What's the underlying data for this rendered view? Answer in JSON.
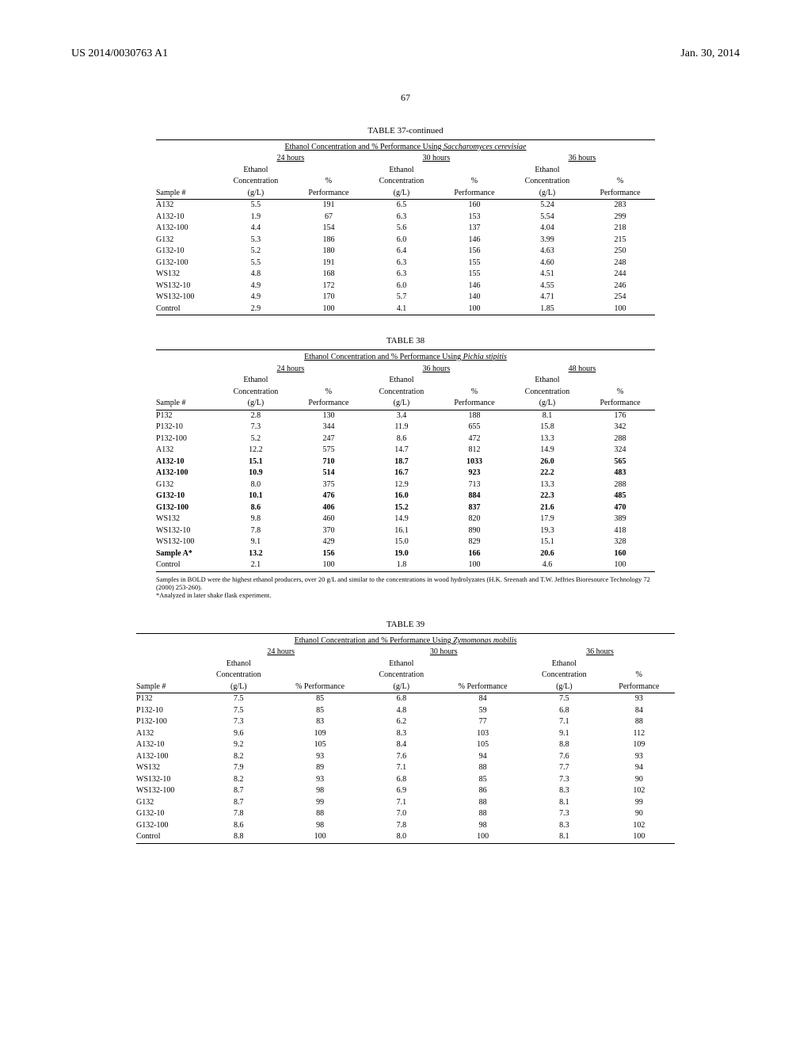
{
  "header": {
    "left": "US 2014/0030763 A1",
    "right": "Jan. 30, 2014"
  },
  "page_number": "67",
  "table37": {
    "title": "TABLE 37-continued",
    "subtitle_plain": "Ethanol Concentration and % Performance Using ",
    "subtitle_italic": "Saccharomyces cerevisiae",
    "time_groups": [
      "24 hours",
      "30 hours",
      "36 hours"
    ],
    "col_sample": "Sample #",
    "col_conc_l1": "Ethanol",
    "col_conc_l2": "Concentration",
    "col_conc_l3": "(g/L)",
    "col_perf_l1": "%",
    "col_perf_l2": "Performance",
    "rows": [
      {
        "s": "A132",
        "v": [
          "5.5",
          "191",
          "6.5",
          "160",
          "5.24",
          "283"
        ],
        "b": false
      },
      {
        "s": "A132-10",
        "v": [
          "1.9",
          "67",
          "6.3",
          "153",
          "5.54",
          "299"
        ],
        "b": false
      },
      {
        "s": "A132-100",
        "v": [
          "4.4",
          "154",
          "5.6",
          "137",
          "4.04",
          "218"
        ],
        "b": false
      },
      {
        "s": "G132",
        "v": [
          "5.3",
          "186",
          "6.0",
          "146",
          "3.99",
          "215"
        ],
        "b": false
      },
      {
        "s": "G132-10",
        "v": [
          "5.2",
          "180",
          "6.4",
          "156",
          "4.63",
          "250"
        ],
        "b": false
      },
      {
        "s": "G132-100",
        "v": [
          "5.5",
          "191",
          "6.3",
          "155",
          "4.60",
          "248"
        ],
        "b": false
      },
      {
        "s": "WS132",
        "v": [
          "4.8",
          "168",
          "6.3",
          "155",
          "4.51",
          "244"
        ],
        "b": false
      },
      {
        "s": "WS132-10",
        "v": [
          "4.9",
          "172",
          "6.0",
          "146",
          "4.55",
          "246"
        ],
        "b": false
      },
      {
        "s": "WS132-100",
        "v": [
          "4.9",
          "170",
          "5.7",
          "140",
          "4.71",
          "254"
        ],
        "b": false
      },
      {
        "s": "Control",
        "v": [
          "2.9",
          "100",
          "4.1",
          "100",
          "1.85",
          "100"
        ],
        "b": false
      }
    ]
  },
  "table38": {
    "title": "TABLE 38",
    "subtitle_plain": "Ethanol Concentration and % Performance Using ",
    "subtitle_italic": "Pichia stipitis",
    "time_groups": [
      "24 hours",
      "36 hours",
      "48 hours"
    ],
    "col_sample": "Sample #",
    "col_conc_l1": "Ethanol",
    "col_conc_l2": "Concentration",
    "col_conc_l3": "(g/L)",
    "col_perf_l1": "%",
    "col_perf_l2": "Performance",
    "rows": [
      {
        "s": "P132",
        "v": [
          "2.8",
          "130",
          "3.4",
          "188",
          "8.1",
          "176"
        ],
        "b": false
      },
      {
        "s": "P132-10",
        "v": [
          "7.3",
          "344",
          "11.9",
          "655",
          "15.8",
          "342"
        ],
        "b": false
      },
      {
        "s": "P132-100",
        "v": [
          "5.2",
          "247",
          "8.6",
          "472",
          "13.3",
          "288"
        ],
        "b": false
      },
      {
        "s": "A132",
        "v": [
          "12.2",
          "575",
          "14.7",
          "812",
          "14.9",
          "324"
        ],
        "b": false
      },
      {
        "s": "A132-10",
        "v": [
          "15.1",
          "710",
          "18.7",
          "1033",
          "26.0",
          "565"
        ],
        "b": true
      },
      {
        "s": "A132-100",
        "v": [
          "10.9",
          "514",
          "16.7",
          "923",
          "22.2",
          "483"
        ],
        "b": true
      },
      {
        "s": "G132",
        "v": [
          "8.0",
          "375",
          "12.9",
          "713",
          "13.3",
          "288"
        ],
        "b": false
      },
      {
        "s": "G132-10",
        "v": [
          "10.1",
          "476",
          "16.0",
          "884",
          "22.3",
          "485"
        ],
        "b": true
      },
      {
        "s": "G132-100",
        "v": [
          "8.6",
          "406",
          "15.2",
          "837",
          "21.6",
          "470"
        ],
        "b": true
      },
      {
        "s": "WS132",
        "v": [
          "9.8",
          "460",
          "14.9",
          "820",
          "17.9",
          "389"
        ],
        "b": false
      },
      {
        "s": "WS132-10",
        "v": [
          "7.8",
          "370",
          "16.1",
          "890",
          "19.3",
          "418"
        ],
        "b": false
      },
      {
        "s": "WS132-100",
        "v": [
          "9.1",
          "429",
          "15.0",
          "829",
          "15.1",
          "328"
        ],
        "b": false
      },
      {
        "s": "Sample A*",
        "v": [
          "13.2",
          "156",
          "19.0",
          "166",
          "20.6",
          "160"
        ],
        "b": true
      },
      {
        "s": "Control",
        "v": [
          "2.1",
          "100",
          "1.8",
          "100",
          "4.6",
          "100"
        ],
        "b": false
      }
    ],
    "footnote": "Samples in BOLD were the highest ethanol producers, over 20 g/L and similar to the concentrations in wood hydrolyzates (H.K. Sreenath and T.W. Jeffries Bioresource Technology 72 (2000) 253-260).\n*Analyzed in later shake flask experiment."
  },
  "table39": {
    "title": "TABLE 39",
    "subtitle_plain": "Ethanol Concentration and % Performance Using ",
    "subtitle_italic": "Zymomonas mobilis",
    "time_groups": [
      "24 hours",
      "30 hours",
      "36 hours"
    ],
    "col_sample": "Sample #",
    "col_conc_l1": "Ethanol",
    "col_conc_l2": "Concentration",
    "col_conc_l3": "(g/L)",
    "col_perf_single": "% Performance",
    "col_perf_l1": "%",
    "col_perf_l2": "Performance",
    "rows": [
      {
        "s": "P132",
        "v": [
          "7.5",
          "85",
          "6.8",
          "84",
          "7.5",
          "93"
        ],
        "b": false
      },
      {
        "s": "P132-10",
        "v": [
          "7.5",
          "85",
          "4.8",
          "59",
          "6.8",
          "84"
        ],
        "b": false
      },
      {
        "s": "P132-100",
        "v": [
          "7.3",
          "83",
          "6.2",
          "77",
          "7.1",
          "88"
        ],
        "b": false
      },
      {
        "s": "A132",
        "v": [
          "9.6",
          "109",
          "8.3",
          "103",
          "9.1",
          "112"
        ],
        "b": false
      },
      {
        "s": "A132-10",
        "v": [
          "9.2",
          "105",
          "8.4",
          "105",
          "8.8",
          "109"
        ],
        "b": false
      },
      {
        "s": "A132-100",
        "v": [
          "8.2",
          "93",
          "7.6",
          "94",
          "7.6",
          "93"
        ],
        "b": false
      },
      {
        "s": "WS132",
        "v": [
          "7.9",
          "89",
          "7.1",
          "88",
          "7.7",
          "94"
        ],
        "b": false
      },
      {
        "s": "WS132-10",
        "v": [
          "8.2",
          "93",
          "6.8",
          "85",
          "7.3",
          "90"
        ],
        "b": false
      },
      {
        "s": "WS132-100",
        "v": [
          "8.7",
          "98",
          "6.9",
          "86",
          "8.3",
          "102"
        ],
        "b": false
      },
      {
        "s": "G132",
        "v": [
          "8.7",
          "99",
          "7.1",
          "88",
          "8.1",
          "99"
        ],
        "b": false
      },
      {
        "s": "G132-10",
        "v": [
          "7.8",
          "88",
          "7.0",
          "88",
          "7.3",
          "90"
        ],
        "b": false
      },
      {
        "s": "G132-100",
        "v": [
          "8.6",
          "98",
          "7.8",
          "98",
          "8.3",
          "102"
        ],
        "b": false
      },
      {
        "s": "Control",
        "v": [
          "8.8",
          "100",
          "8.0",
          "100",
          "8.1",
          "100"
        ],
        "b": false
      }
    ]
  }
}
